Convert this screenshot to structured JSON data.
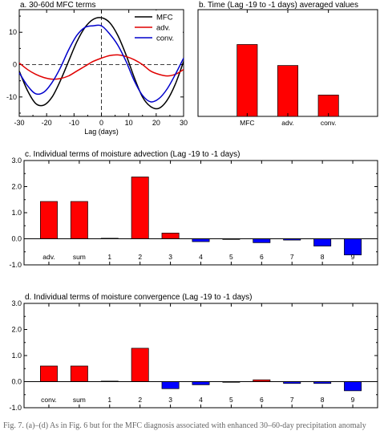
{
  "caption": "Fig. 7. (a)–(d) As in Fig. 6 but for the MFC diagnosis associated with enhanced 30–60-day precipitation anomaly",
  "colors": {
    "mfc": "#000000",
    "adv": "#e00000",
    "conv": "#0000cc",
    "positive_bar": "#ff0000",
    "negative_bar": "#0000ff"
  },
  "chart_data": [
    {
      "id": "a",
      "type": "line",
      "title": "a. 30-60d MFC terms",
      "xlabel": "Lag (days)",
      "ylabel": "",
      "xlim": [
        -30,
        30
      ],
      "ylim": [
        -16,
        17
      ],
      "xticks": [
        -30,
        -20,
        -10,
        0,
        10,
        20,
        30
      ],
      "yticks": [
        -10,
        0,
        10
      ],
      "x": [
        -30,
        -27,
        -24,
        -21,
        -18,
        -15,
        -12,
        -9,
        -6,
        -3,
        0,
        3,
        6,
        9,
        12,
        15,
        18,
        21,
        24,
        27,
        30
      ],
      "series": [
        {
          "name": "MFC",
          "color": "#000000",
          "values": [
            -2,
            -8,
            -12,
            -12.5,
            -10,
            -5,
            1,
            7,
            11.5,
            14,
            14.5,
            13,
            9,
            3,
            -4,
            -10,
            -13,
            -13.5,
            -11,
            -6,
            1
          ]
        },
        {
          "name": "adv.",
          "color": "#e00000",
          "values": [
            0.5,
            -1.5,
            -3,
            -4,
            -4.5,
            -4.3,
            -3.5,
            -2,
            -0.5,
            1,
            2,
            2.8,
            3,
            2.5,
            1.5,
            0,
            -2,
            -3,
            -3.5,
            -3,
            -1.5
          ]
        },
        {
          "name": "conv.",
          "color": "#0000cc",
          "values": [
            -2.5,
            -6.5,
            -9,
            -8.5,
            -5.5,
            -1,
            4.5,
            9,
            11.5,
            12,
            12,
            9.5,
            6,
            1,
            -5,
            -9.5,
            -11.5,
            -10.5,
            -7.5,
            -3,
            2
          ]
        }
      ],
      "reference_lines": {
        "y": 0,
        "x": 0
      },
      "legend": "top-right"
    },
    {
      "id": "b",
      "type": "bar",
      "title": "b. Time (Lag -19 to -1 days) averaged values",
      "categories": [
        "MFC",
        "adv.",
        "conv."
      ],
      "values": [
        2.02,
        1.43,
        0.6
      ],
      "ylim": [
        0,
        3
      ],
      "xlabel": "",
      "ylabel": ""
    },
    {
      "id": "c",
      "type": "bar",
      "title": "c. Individual terms of moisture advection (Lag -19 to -1 days)",
      "categories": [
        "adv.",
        "sum",
        "1",
        "2",
        "3",
        "4",
        "5",
        "6",
        "7",
        "8",
        "9"
      ],
      "values": [
        1.43,
        1.43,
        0.02,
        2.37,
        0.22,
        -0.11,
        -0.02,
        -0.15,
        -0.05,
        -0.28,
        -0.62
      ],
      "ylim": [
        -1,
        3
      ],
      "yticks": [
        "-1.0",
        "0.0",
        "1.0",
        "2.0",
        "3.0"
      ],
      "xlabel": "",
      "ylabel": ""
    },
    {
      "id": "d",
      "type": "bar",
      "title": "d. Individual terms of moisture convergence (Lag -19 to -1 days)",
      "categories": [
        "conv.",
        "sum",
        "1",
        "2",
        "3",
        "4",
        "5",
        "6",
        "7",
        "8",
        "9"
      ],
      "values": [
        0.6,
        0.6,
        0.02,
        1.28,
        -0.27,
        -0.12,
        -0.02,
        0.07,
        -0.07,
        -0.07,
        -0.35
      ],
      "ylim": [
        -1,
        3
      ],
      "yticks": [
        "-1.0",
        "0.0",
        "1.0",
        "2.0",
        "3.0"
      ],
      "xlabel": "",
      "ylabel": ""
    }
  ]
}
